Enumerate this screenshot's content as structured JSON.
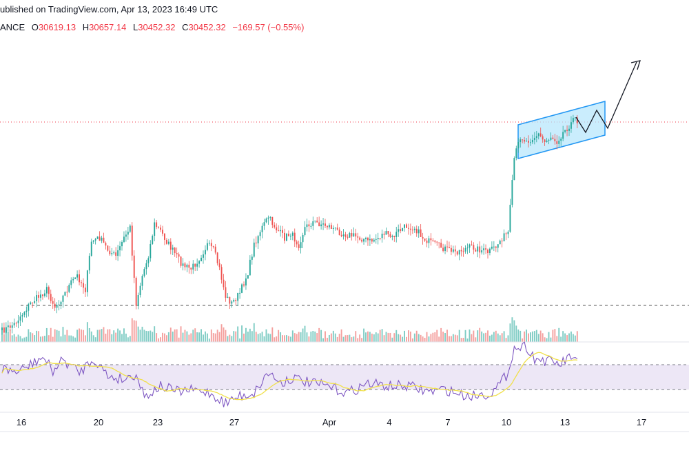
{
  "header": {
    "published": "ublished on TradingView.com, Apr 13, 2023 16:49 UTC",
    "symbol_fragment": "ANCE",
    "o_label": "O",
    "o_value": "30619.13",
    "h_label": "H",
    "h_value": "30657.14",
    "l_label": "L",
    "l_value": "30452.32",
    "c_label": "C",
    "c_value": "30452.32",
    "change": "−169.57 (−0.55%)"
  },
  "colors": {
    "up": "#26a69a",
    "down": "#ef5350",
    "up_vol": "#7fccc4",
    "down_vol": "#f4a09e",
    "rsi_line": "#7e57c2",
    "rsi_ma": "#f0e04a",
    "rsi_band": "#ede7f6",
    "channel_fill": "#b3e5fc",
    "channel_border": "#2196f3",
    "price_line": "#f23645"
  },
  "chart_data": {
    "type": "candlestick",
    "x_labels": [
      "16",
      "20",
      "23",
      "27",
      "Apr",
      "4",
      "7",
      "10",
      "13",
      "17"
    ],
    "current_price": 30452.32,
    "candles_note": "approximate OHLC path Mar 15 – Apr 13 2023, 4h candles",
    "rsi": {
      "overbought": 70,
      "oversold": 30
    }
  }
}
